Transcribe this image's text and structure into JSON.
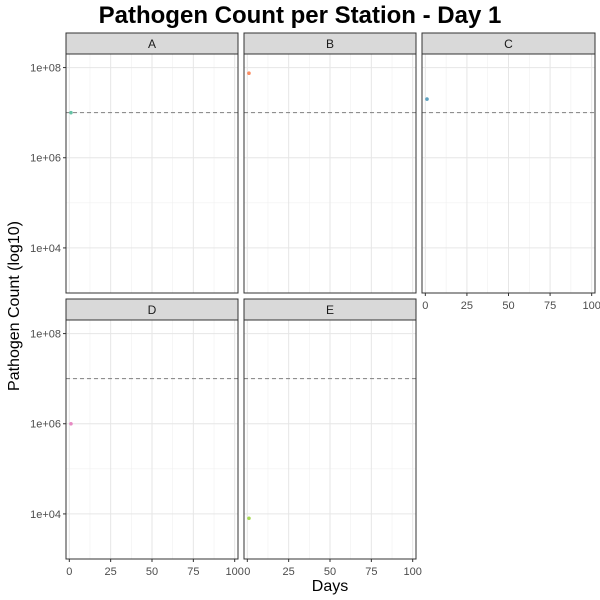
{
  "chart_data": {
    "type": "scatter",
    "title": "Pathogen Count per Station - Day 1",
    "xlabel": "Days",
    "ylabel": "Pathogen Count (log10)",
    "y_scale": "log10",
    "xlim": [
      -2,
      102
    ],
    "ylim": [
      1000,
      200000000
    ],
    "x_ticks": [
      0,
      25,
      50,
      75,
      100
    ],
    "x_tick_labels": [
      "0",
      "25",
      "50",
      "75",
      "100"
    ],
    "y_ticks": [
      10000,
      1000000,
      100000000
    ],
    "y_tick_labels": [
      "1e+04",
      "1e+06",
      "1e+08"
    ],
    "threshold": 10000000,
    "threshold_style": "dashed",
    "grid": true,
    "panels": [
      {
        "label": "A",
        "x": 1,
        "y": 10000000,
        "color": "#66c2a5"
      },
      {
        "label": "B",
        "x": 1,
        "y": 75000000,
        "color": "#fc8d62"
      },
      {
        "label": "C",
        "x": 1,
        "y": 20000000,
        "color": "#5fa2c0"
      },
      {
        "label": "D",
        "x": 1,
        "y": 1000000,
        "color": "#e78ac3"
      },
      {
        "label": "E",
        "x": 1,
        "y": 8000,
        "color": "#a6d854"
      }
    ]
  }
}
